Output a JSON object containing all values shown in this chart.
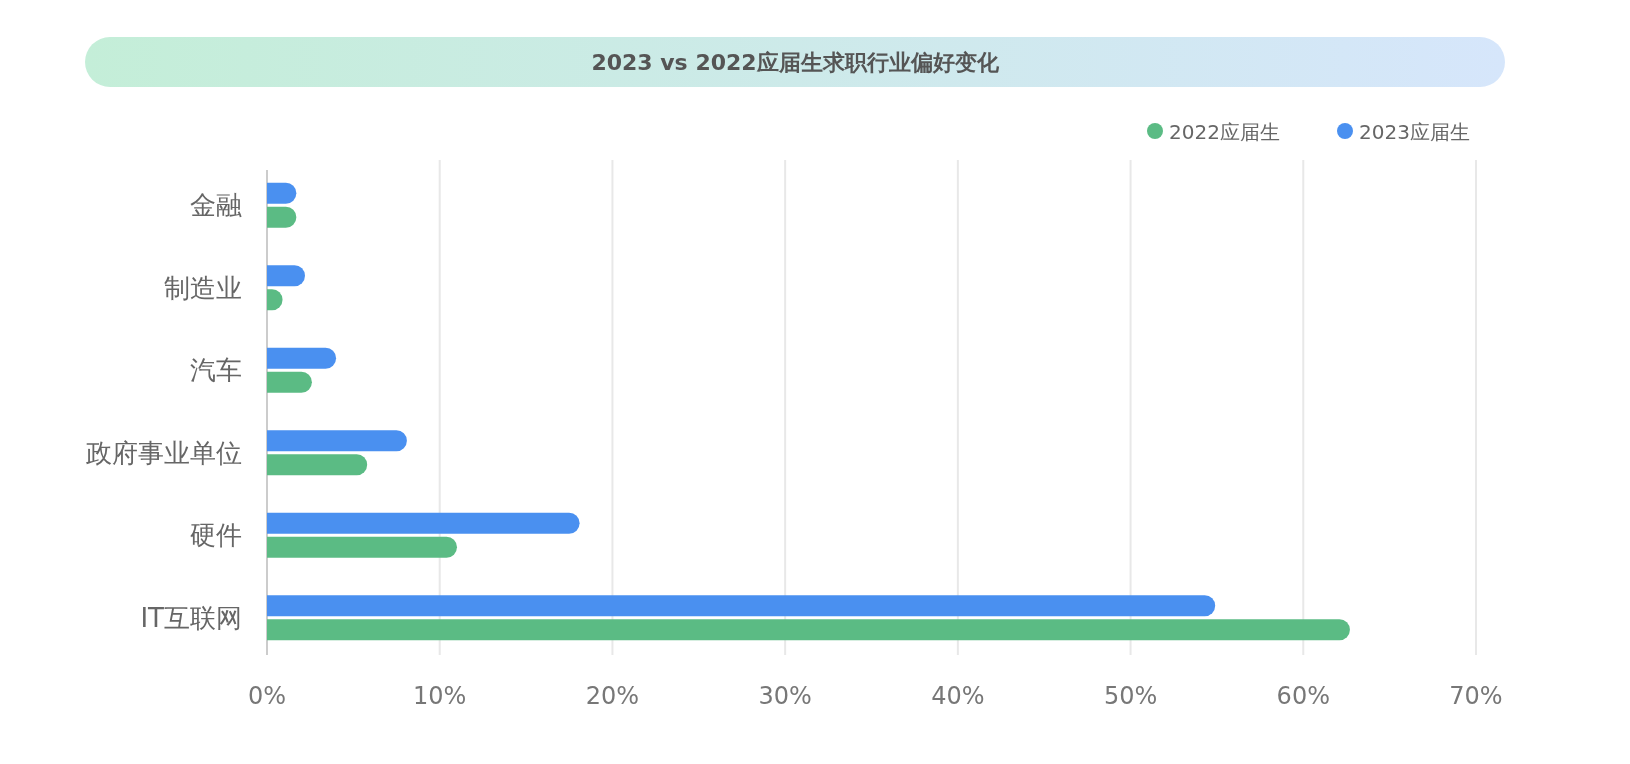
{
  "chart_data": {
    "type": "bar",
    "orientation": "horizontal",
    "title": "2023 vs 2022应届生求职行业偏好变化",
    "categories": [
      "金融",
      "制造业",
      "汽车",
      "政府事业单位",
      "硬件",
      "IT互联网"
    ],
    "series": [
      {
        "name": "2023应届生",
        "color": "#4a90f0",
        "values": [
          1.7,
          2.2,
          4,
          8.1,
          18.1,
          54.9
        ]
      },
      {
        "name": "2022应届生",
        "color": "#5bbb84",
        "values": [
          1.7,
          0.9,
          2.6,
          5.8,
          11,
          62.7
        ]
      }
    ],
    "xlim": [
      0,
      70
    ],
    "xticks": [
      {
        "value": 0,
        "label": "0%"
      },
      {
        "value": 10,
        "label": "10%"
      },
      {
        "value": 20,
        "label": "20%"
      },
      {
        "value": 30,
        "label": "30%"
      },
      {
        "value": 40,
        "label": "40%"
      },
      {
        "value": 50,
        "label": "50%"
      },
      {
        "value": 60,
        "label": "60%"
      },
      {
        "value": 70,
        "label": "70%"
      }
    ],
    "grid": "x",
    "legend": "top right"
  }
}
